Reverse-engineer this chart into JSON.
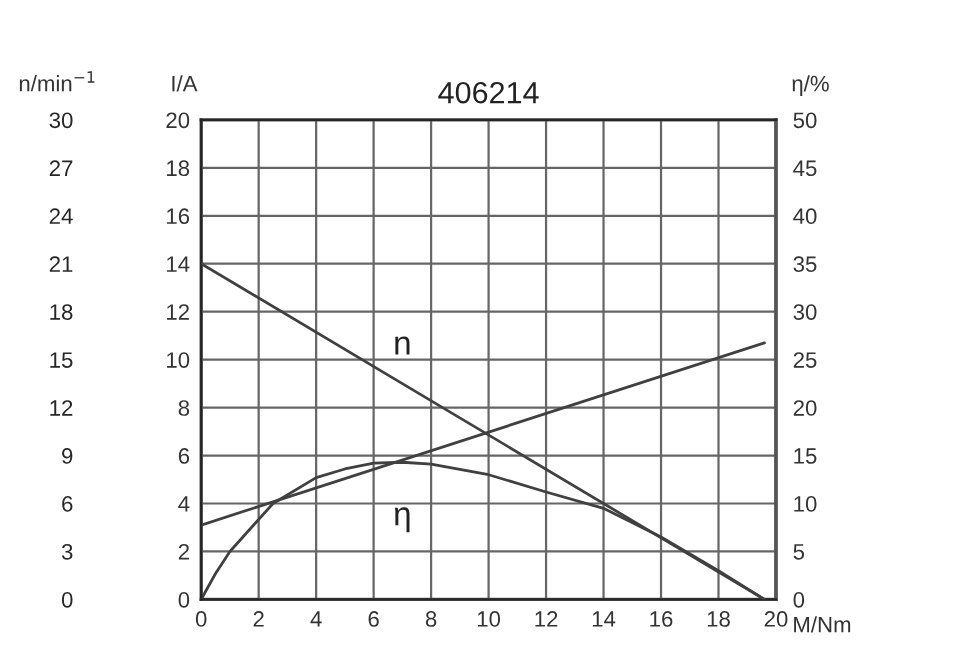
{
  "chart_data": {
    "type": "line",
    "title": "406214",
    "xlabel": "M/Nm",
    "ylabel": "I/A",
    "y2label": "η/%",
    "y3label": "n/min$^{−1}$",
    "xlim": [
      0,
      20
    ],
    "xticks": [
      0,
      2,
      4,
      6,
      8,
      10,
      12,
      14,
      16,
      18,
      20
    ],
    "ylim": [
      0,
      20
    ],
    "yticks": [
      0,
      2,
      4,
      6,
      8,
      10,
      12,
      14,
      16,
      18,
      20
    ],
    "y2lim": [
      0,
      50
    ],
    "y2ticks": [
      0,
      5,
      10,
      15,
      20,
      25,
      30,
      35,
      40,
      45,
      50
    ],
    "y3lim": [
      0,
      30
    ],
    "y3ticks": [
      0,
      3,
      6,
      9,
      12,
      15,
      18,
      21,
      24,
      27,
      30
    ],
    "grid": true,
    "series": [
      {
        "name": "n",
        "axis": "y3",
        "color": "#404040",
        "x": [
          0,
          7,
          19.6
        ],
        "values": [
          21,
          13.5,
          0
        ]
      },
      {
        "axis": "y",
        "color": "#404040",
        "x": [
          0,
          19.6
        ],
        "values": [
          3.1,
          10.7
        ]
      },
      {
        "name": "η",
        "axis": "y2",
        "color": "#404040",
        "x": [
          0,
          0.5,
          1,
          2.5,
          4,
          5,
          6,
          7,
          8,
          10,
          12,
          14,
          16,
          18,
          19.6
        ],
        "values": [
          0,
          2.7,
          5,
          10,
          12.7,
          13.6,
          14.2,
          14.3,
          14.1,
          13,
          11.2,
          9.5,
          6.5,
          3,
          0
        ]
      }
    ]
  }
}
